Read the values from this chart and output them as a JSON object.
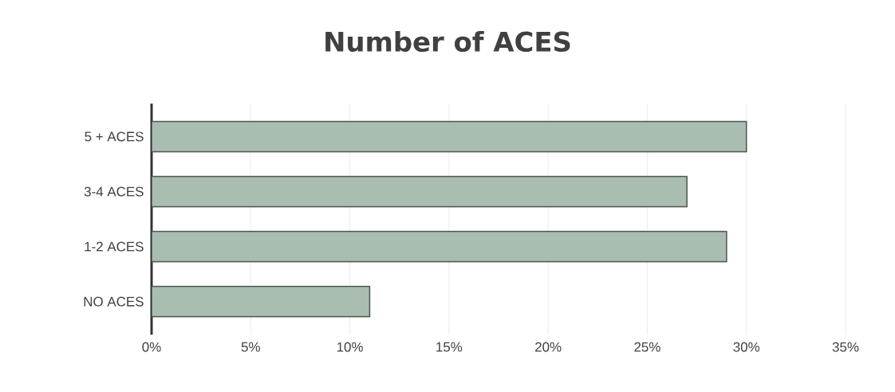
{
  "chart_data": {
    "type": "bar",
    "title": "Number  of ACES",
    "orientation": "horizontal",
    "categories": [
      "5 + ACES",
      "3-4 ACES",
      "1-2 ACES",
      "NO ACES"
    ],
    "values": [
      30,
      27,
      29,
      11
    ],
    "color": "#a9bdb0",
    "xlim": [
      0,
      35
    ],
    "xticks": [
      {
        "value": 0,
        "label": "0%"
      },
      {
        "value": 5,
        "label": "5%"
      },
      {
        "value": 10,
        "label": "10%"
      },
      {
        "value": 15,
        "label": "15%"
      },
      {
        "value": 20,
        "label": "20%"
      },
      {
        "value": 25,
        "label": "25%"
      },
      {
        "value": 30,
        "label": "30%"
      },
      {
        "value": 35,
        "label": "35%"
      }
    ],
    "grid": "x"
  }
}
